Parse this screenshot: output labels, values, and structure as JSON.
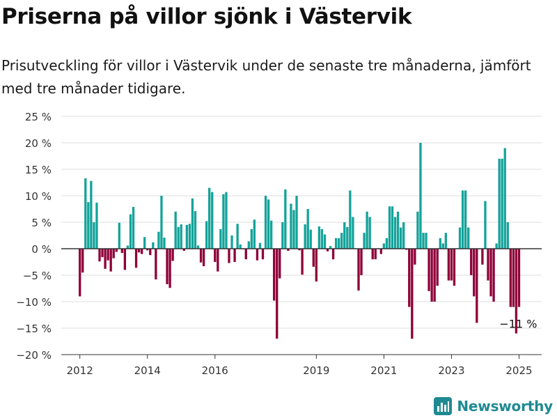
{
  "header": {
    "title": "Priserna på villor sjönk i Västervik",
    "subtitle": "Prisutveckling för villor i Västervik under de senaste tre månaderna, jämfört med tre månader tidigare."
  },
  "brand": {
    "name": "Newsworthy",
    "icon": "newsworthy-logo-icon"
  },
  "colors": {
    "positive": "#14a39a",
    "negative": "#8e0038",
    "grid": "#dcdcdc",
    "axis": "#333333"
  },
  "chart_data": {
    "type": "bar",
    "title": "",
    "xlabel": "",
    "ylabel": "",
    "ylim": [
      -20,
      25
    ],
    "yticks": [
      25,
      20,
      15,
      10,
      5,
      0,
      -5,
      -10,
      -15,
      -20
    ],
    "ytick_labels": [
      "25 %",
      "20 %",
      "15 %",
      "10 %",
      "5 %",
      "0 %",
      "−5 %",
      "−10 %",
      "−15 %",
      "−20 %"
    ],
    "xticks": [
      {
        "x": 2012.0,
        "label": "2012"
      },
      {
        "x": 2014.0,
        "label": "2014"
      },
      {
        "x": 2016.0,
        "label": "2016"
      },
      {
        "x": 2019.0,
        "label": "2019"
      },
      {
        "x": 2021.0,
        "label": "2021"
      },
      {
        "x": 2023.0,
        "label": "2023"
      },
      {
        "x": 2025.0,
        "label": "2025"
      }
    ],
    "x_range": [
      2011.45,
      2025.67
    ],
    "x_start": 2012.0,
    "x_step": 0.08333,
    "grid": true,
    "annotation": {
      "label": "−11 %"
    },
    "values": [
      -9,
      -4.5,
      13.3,
      8.8,
      12.8,
      5,
      8.7,
      -2.4,
      -1.6,
      -3.8,
      -2.2,
      -4.3,
      -1.8,
      -0.6,
      4.9,
      -0.8,
      -4,
      0.6,
      6.5,
      7.9,
      -3.6,
      -0.7,
      -1,
      2.2,
      -0.3,
      -1.2,
      1.2,
      -5.8,
      3.2,
      10,
      2.1,
      -6.7,
      -7.4,
      -2.3,
      7,
      4.1,
      4.6,
      -0.4,
      4.5,
      4.7,
      9.5,
      7.1,
      0.6,
      -2.6,
      -3.3,
      5.2,
      11.5,
      10.7,
      -2.5,
      -4.3,
      3.7,
      10.3,
      10.7,
      -2.7,
      2.5,
      -2.5,
      4.7,
      0.8,
      -0.1,
      -2,
      1.4,
      3.7,
      5.5,
      -2.2,
      1.1,
      -2,
      10,
      9.3,
      5.3,
      -9.8,
      -17,
      -5.6,
      5,
      11.2,
      -0.4,
      8.5,
      7.3,
      10,
      -0.3,
      -4.9,
      4.6,
      7.5,
      3.6,
      -3.4,
      -6.2,
      4.2,
      3.7,
      2.7,
      -0.5,
      0.5,
      -2,
      2,
      2,
      3,
      5,
      4.1,
      11,
      6,
      0.1,
      -7.9,
      -5,
      3,
      7,
      6,
      -2,
      -2,
      -0.1,
      -1,
      1,
      2,
      8,
      8,
      6,
      7,
      4,
      5,
      -0.2,
      -11,
      -17,
      -3,
      7,
      20,
      3,
      3,
      -8,
      -10,
      -10,
      -7,
      2,
      1,
      3,
      -6,
      -6,
      -7,
      0.1,
      4,
      11,
      11,
      4,
      -5,
      -9,
      -14,
      -0.1,
      -3,
      9,
      -6,
      -9,
      -10,
      1,
      17,
      17,
      19,
      5,
      -11,
      -11,
      -16,
      -11
    ]
  }
}
